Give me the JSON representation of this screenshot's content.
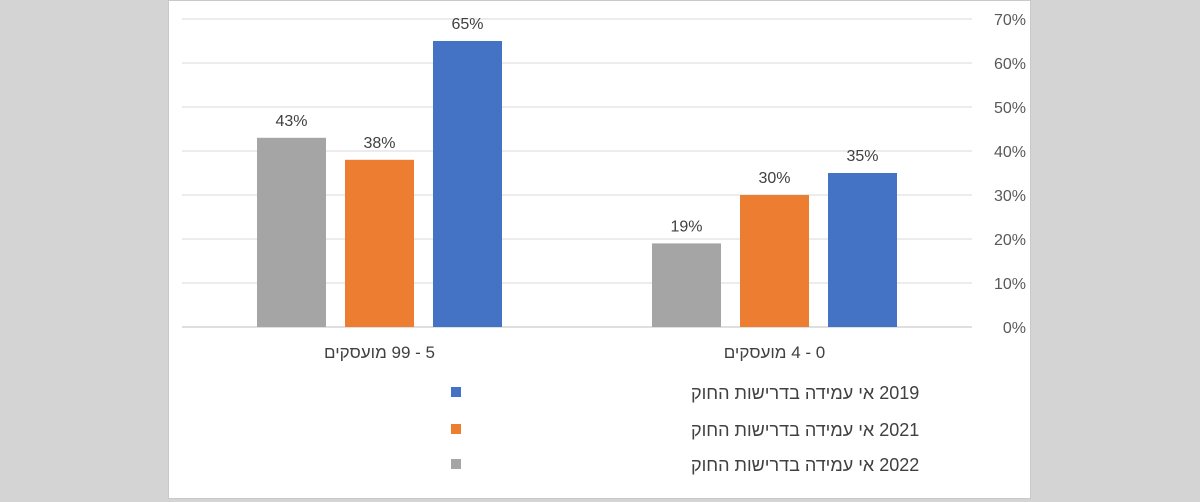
{
  "chart_data": {
    "type": "bar",
    "categories": [
      "0 - 4 מועסקים",
      "5 - 99 מועסקים"
    ],
    "series": [
      {
        "name": "2019 אי עמידה בדרישות החוק",
        "values": [
          35,
          65
        ],
        "labels": [
          "35%",
          "65%"
        ],
        "color": "#4472c4"
      },
      {
        "name": "2021 אי עמידה בדרישות החוק",
        "values": [
          30,
          38
        ],
        "labels": [
          "30%",
          "38%"
        ],
        "color": "#ed7d31"
      },
      {
        "name": "2022 אי עמידה בדרישות החוק",
        "values": [
          19,
          43
        ],
        "labels": [
          "19%",
          "43%"
        ],
        "color": "#a5a5a5"
      }
    ],
    "ylim": [
      0,
      70
    ],
    "yticks": [
      0,
      10,
      20,
      30,
      40,
      50,
      60,
      70
    ],
    "ytick_labels": [
      "0%",
      "10%",
      "20%",
      "30%",
      "40%",
      "50%",
      "60%",
      "70%"
    ],
    "y_axis_side": "right",
    "category_order": "right-to-left",
    "grid": true,
    "legend_position": "bottom",
    "title": "",
    "xlabel": "",
    "ylabel": ""
  }
}
